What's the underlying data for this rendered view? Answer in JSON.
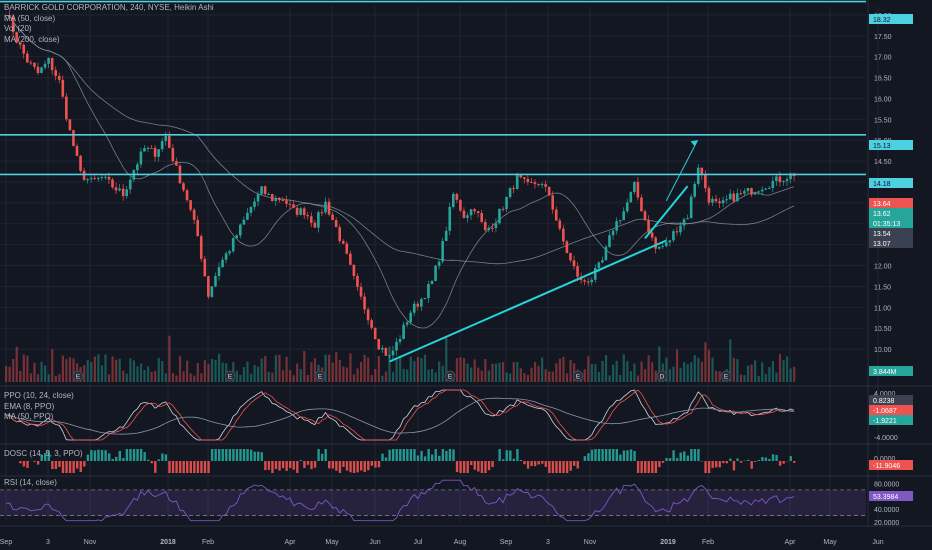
{
  "header": {
    "title": "BARRICK GOLD CORPORATION, 240, NYSE, Heikin Ashi",
    "indicators": [
      "MA (50, close)",
      "Vol (20)",
      "MA (200, close)"
    ]
  },
  "panes": {
    "ppo": {
      "title": "PPO (10, 24, close)",
      "lines": [
        "PPO (10, 24, close)",
        "EMA (8, PPO)",
        "MA (50, PPO)"
      ]
    },
    "dosc": {
      "title": "DOSC (14, 5, 3, PPO)"
    },
    "rsi": {
      "title": "RSI (14, close)"
    }
  },
  "colors": {
    "background": "#131722",
    "up": "#26a69a",
    "down": "#ef5350",
    "level": "#4dd0e1",
    "trend": "#26d4d8",
    "ma": "#8c99a8",
    "rsi": "#7e57c2",
    "grid": "#1f2433"
  },
  "chart_data": [
    {
      "type": "candlestick",
      "title": "BARRICK GOLD CORPORATION, 240, NYSE, Heikin Ashi",
      "ylim": [
        9.5,
        18.5
      ],
      "yticks": [
        10.0,
        10.5,
        11.0,
        11.5,
        12.0,
        12.5,
        13.0,
        13.5,
        14.0,
        14.5,
        15.0,
        15.5,
        16.0,
        16.5,
        17.0,
        17.5,
        18.0,
        18.5
      ],
      "x_ticks": [
        "Sep",
        "3",
        "Nov",
        "2018",
        "Feb",
        "Apr",
        "May",
        "Jun",
        "Jul",
        "Aug",
        "Sep",
        "3",
        "Nov",
        "2019",
        "Feb",
        "Apr",
        "May",
        "Jun"
      ],
      "price_path": {
        "x": [
          0,
          3,
          6,
          9,
          12,
          15,
          18,
          21,
          24,
          27,
          30,
          33,
          36,
          39,
          42,
          45,
          48,
          51,
          54,
          57,
          60,
          63,
          66,
          69,
          72,
          75,
          78,
          81,
          84,
          87,
          90,
          93,
          96,
          99,
          102,
          105,
          108,
          111,
          114,
          117,
          120,
          123,
          126,
          129,
          132,
          135,
          138,
          141,
          144,
          147,
          150,
          153,
          156,
          159,
          162,
          165,
          168,
          171,
          174,
          177,
          180,
          183,
          186,
          189,
          192,
          195,
          198,
          201,
          204,
          207,
          210,
          213,
          216,
          219,
          222
        ],
        "close": [
          18.1,
          17.4,
          16.9,
          16.6,
          16.9,
          16.4,
          15.2,
          14.2,
          14.0,
          14.1,
          13.9,
          13.7,
          14.3,
          14.8,
          14.7,
          15.1,
          14.3,
          13.6,
          12.7,
          11.3,
          12.0,
          12.4,
          12.9,
          13.4,
          13.8,
          13.6,
          13.6,
          13.3,
          13.3,
          13.0,
          13.5,
          12.9,
          12.2,
          11.4,
          10.8,
          10.1,
          9.8,
          10.3,
          10.9,
          11.2,
          11.6,
          12.5,
          13.7,
          13.2,
          13.4,
          12.8,
          13.1,
          13.6,
          14.1,
          13.9,
          14.0,
          13.7,
          12.8,
          12.1,
          11.6,
          11.7,
          12.1,
          12.9,
          13.3,
          13.9,
          13.1,
          12.4,
          12.5,
          12.9,
          13.2,
          14.4,
          13.6,
          13.4,
          13.62,
          13.7,
          13.8,
          13.9,
          14.0,
          14.1,
          14.2
        ]
      },
      "volume_range": [
        3.8,
        10.4
      ],
      "ma_50": {
        "name": "MA (50, close)"
      },
      "ma_200": {
        "name": "MA (200, close)"
      },
      "horizontal_levels": [
        18.32,
        15.13,
        14.18
      ],
      "trendlines": [
        {
          "from": [
            108,
            9.7
          ],
          "to": [
            186,
            12.6
          ]
        },
        {
          "from": [
            180,
            12.65
          ],
          "to": [
            192,
            13.9
          ]
        }
      ],
      "forecast_arrow": {
        "from": [
          186,
          13.55
        ],
        "to": [
          192,
          15.0
        ]
      },
      "event_markers": [
        "E",
        "E",
        "E",
        "E",
        "E",
        "D",
        "E"
      ],
      "price_labels": [
        {
          "text": "18.32",
          "role": "level"
        },
        {
          "text": "15.13",
          "role": "level"
        },
        {
          "text": "14.18",
          "role": "level"
        },
        {
          "text": "13.64",
          "role": "down"
        },
        {
          "text": "13.62",
          "role": "up"
        },
        {
          "text": "01:35:13",
          "role": "up"
        },
        {
          "text": "13.54",
          "role": "ma"
        },
        {
          "text": "13.07",
          "role": "ma"
        },
        {
          "text": "3.844M",
          "role": "up"
        }
      ]
    },
    {
      "type": "line",
      "title": "PPO (10, 24, close)",
      "ylim": [
        -4.5,
        4.5
      ],
      "yticks": [
        4.0,
        0.0,
        -4.0
      ],
      "series": [
        {
          "name": "PPO (10, 24, close)"
        },
        {
          "name": "EMA (8, PPO)"
        },
        {
          "name": "MA (50, PPO)"
        }
      ],
      "price_labels": [
        {
          "text": "0.8238",
          "role": "ma"
        },
        {
          "text": "-1.0687",
          "role": "down"
        },
        {
          "text": "-1.9221",
          "role": "up"
        }
      ]
    },
    {
      "type": "bar",
      "title": "DOSC (14, 5, 3, PPO)",
      "yticks": [
        0.0
      ],
      "price_labels": [
        {
          "text": "-11.9046",
          "role": "down"
        }
      ]
    },
    {
      "type": "line",
      "title": "RSI (14, close)",
      "ylim": [
        20,
        90
      ],
      "yticks": [
        80.0,
        40.0,
        20.0
      ],
      "bands": [
        70,
        30
      ],
      "price_labels": [
        {
          "text": "53.3984",
          "role": "rsi"
        }
      ]
    }
  ]
}
